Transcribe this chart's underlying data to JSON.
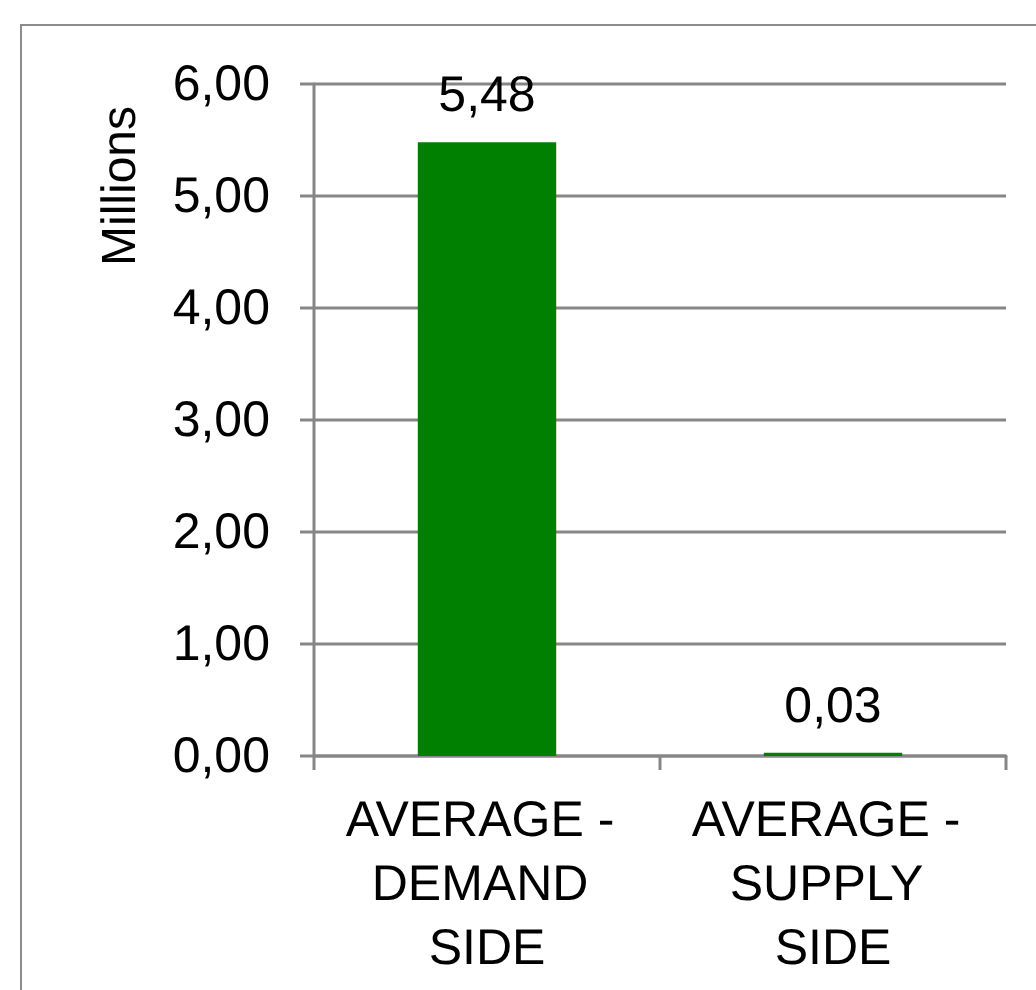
{
  "chart_data": {
    "type": "bar",
    "ylabel": "Millions",
    "categories": [
      "AVERAGE - DEMAND SIDE",
      "AVERAGE - SUPPLY SIDE"
    ],
    "values": [
      5.48,
      0.03
    ],
    "color": "#008000",
    "value_labels": [
      "5,48",
      "0,03"
    ],
    "ylim": [
      0,
      6
    ],
    "yticks": [
      {
        "value": 0,
        "label": "0,00"
      },
      {
        "value": 1,
        "label": "1,00"
      },
      {
        "value": 2,
        "label": "2,00"
      },
      {
        "value": 3,
        "label": "3,00"
      },
      {
        "value": 4,
        "label": "4,00"
      },
      {
        "value": 5,
        "label": "5,00"
      },
      {
        "value": 6,
        "label": "6,00"
      }
    ],
    "grid": "y"
  }
}
